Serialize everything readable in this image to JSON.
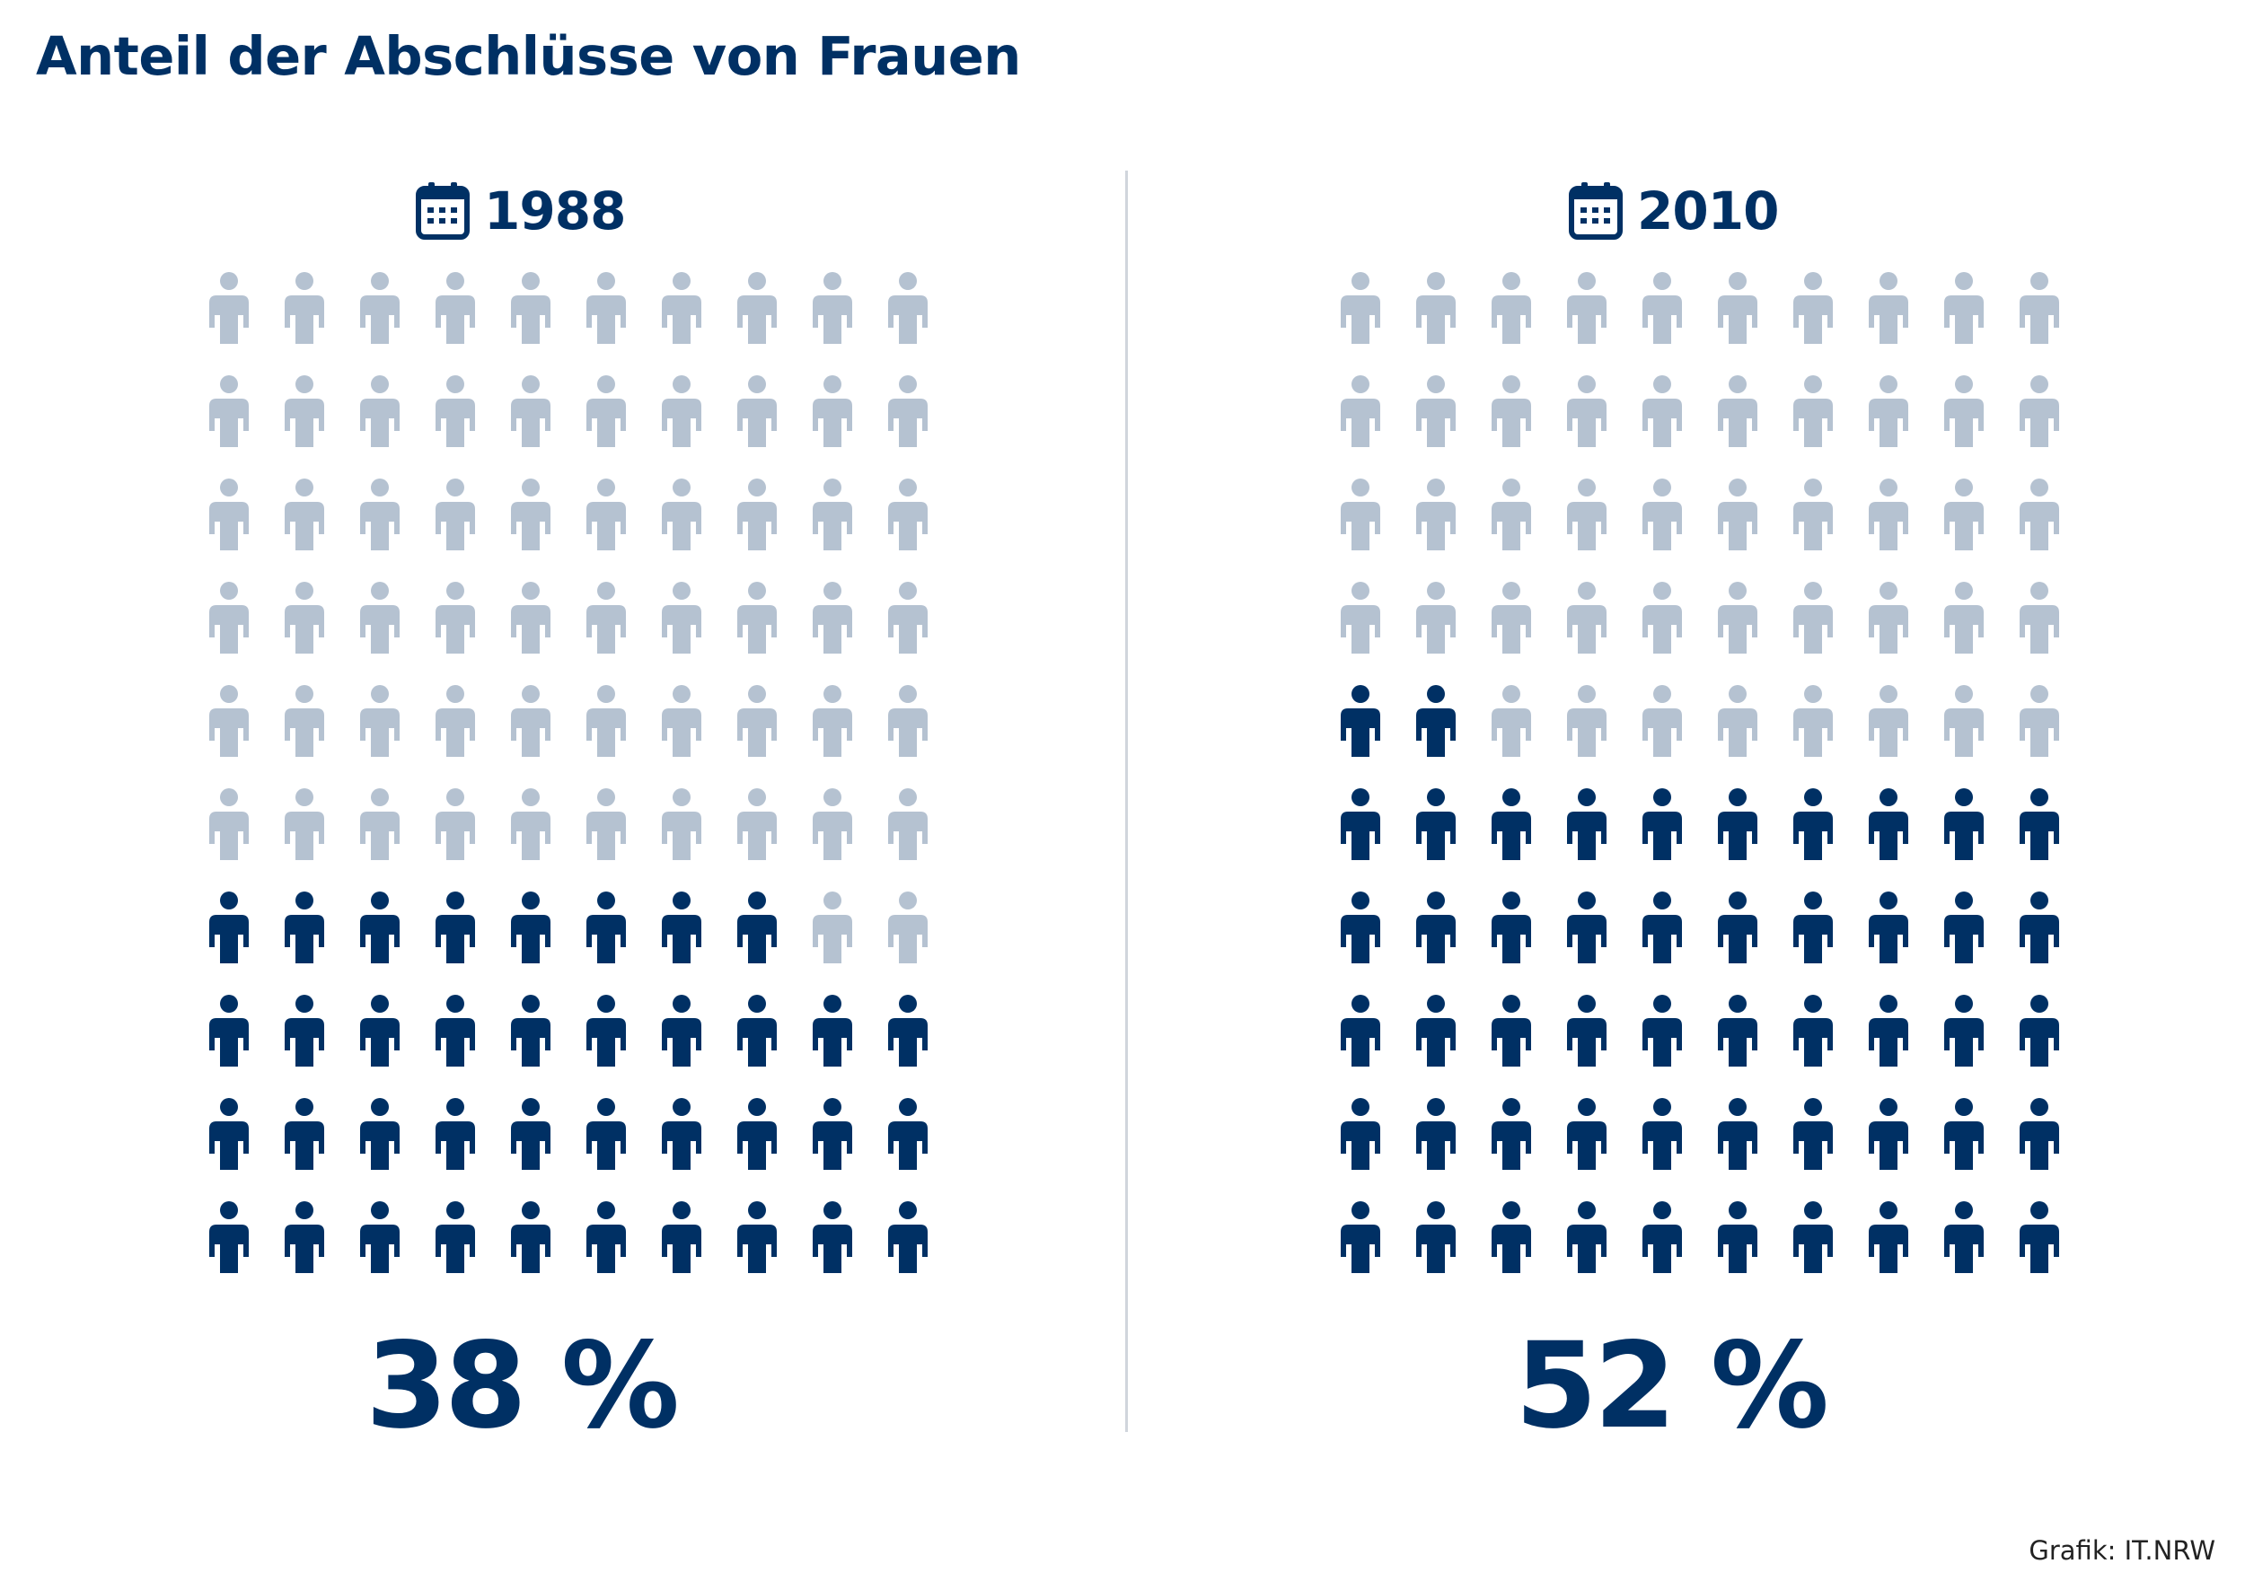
{
  "title": "Anteil der Abschlüsse von Frauen",
  "credit": "Grafik: IT.NRW",
  "colors": {
    "accent": "#003064",
    "inactive": "#b5c2d1",
    "divider": "#d0d5dc"
  },
  "icons": {
    "header": "calendar-icon",
    "unit": "person-icon"
  },
  "chart_data": [
    {
      "type": "waffle",
      "year": "1988",
      "value": 38,
      "value_label": "38 %",
      "total": 100,
      "columns": 10,
      "rows": 10
    },
    {
      "type": "waffle",
      "year": "2010",
      "value": 52,
      "value_label": "52 %",
      "total": 100,
      "columns": 10,
      "rows": 10
    }
  ]
}
